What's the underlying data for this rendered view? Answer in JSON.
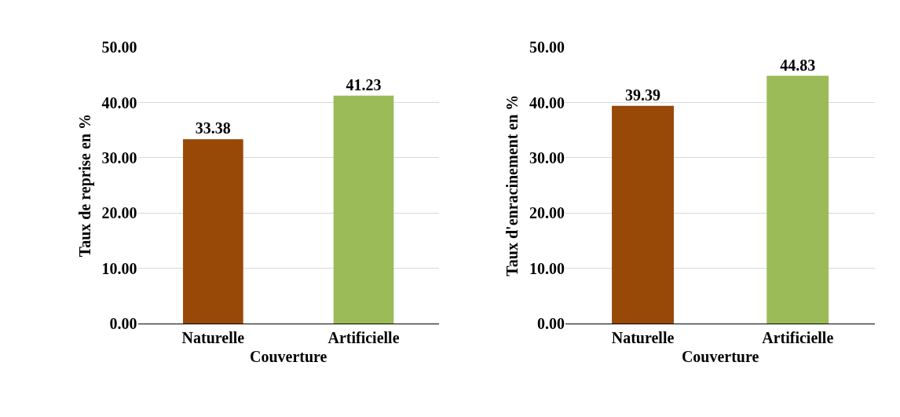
{
  "chart_data": [
    {
      "type": "bar",
      "xlabel": "Couverture",
      "ylabel": "Taux de reprise en %",
      "categories": [
        "Naturelle",
        "Artificielle"
      ],
      "values": [
        33.38,
        41.23
      ],
      "colors": [
        "#984807",
        "#9bbb59"
      ],
      "data_labels": true,
      "ylim": [
        0,
        50
      ],
      "yticks": [
        {
          "value": 0,
          "label": "0.00"
        },
        {
          "value": 10,
          "label": "10.00"
        },
        {
          "value": 20,
          "label": "20.00"
        },
        {
          "value": 30,
          "label": "30.00"
        },
        {
          "value": 40,
          "label": "40.00"
        },
        {
          "value": 50,
          "label": "50.00"
        }
      ],
      "grid": "y"
    },
    {
      "type": "bar",
      "xlabel": "Couverture",
      "ylabel": "Taux d'enracinement en %",
      "categories": [
        "Naturelle",
        "Artificielle"
      ],
      "values": [
        39.39,
        44.83
      ],
      "colors": [
        "#984807",
        "#9bbb59"
      ],
      "data_labels": true,
      "ylim": [
        0,
        50
      ],
      "yticks": [
        {
          "value": 0,
          "label": "0.00"
        },
        {
          "value": 10,
          "label": "10.00"
        },
        {
          "value": 20,
          "label": "20.00"
        },
        {
          "value": 30,
          "label": "30.00"
        },
        {
          "value": 40,
          "label": "40.00"
        },
        {
          "value": 50,
          "label": "50.00"
        }
      ],
      "grid": "y"
    }
  ]
}
